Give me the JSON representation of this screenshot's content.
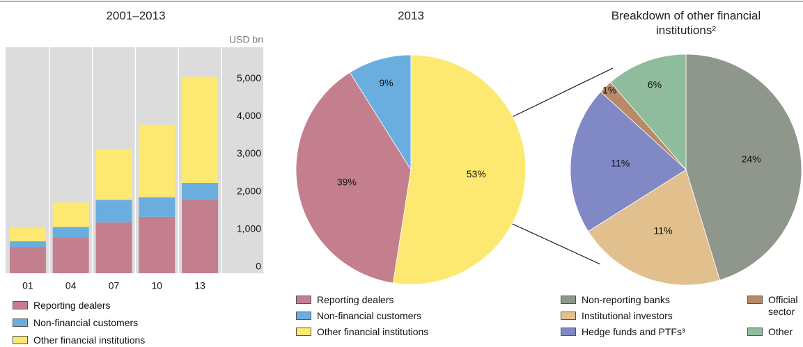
{
  "chart_data": [
    {
      "type": "bar",
      "stacked": true,
      "title": "2001–2013",
      "ylabel": "USD bn",
      "categories": [
        "01",
        "04",
        "07",
        "10",
        "13"
      ],
      "series": [
        {
          "name": "Reporting dealers",
          "color": "#c47f8e",
          "values": [
            700,
            950,
            1350,
            1500,
            1950
          ]
        },
        {
          "name": "Non-financial customers",
          "color": "#6aaee0",
          "values": [
            150,
            280,
            600,
            520,
            450
          ]
        },
        {
          "name": "Other financial institutions",
          "color": "#fde971",
          "values": [
            350,
            650,
            1350,
            1920,
            2820
          ]
        }
      ],
      "ylim": [
        0,
        6000
      ],
      "yticks": [
        0,
        {
          "value": 1000,
          "label": "1,000"
        },
        {
          "value": 2000,
          "label": "2,000"
        },
        {
          "value": 3000,
          "label": "3,000"
        },
        {
          "value": 4000,
          "label": "4,000"
        },
        {
          "value": 5000,
          "label": "5,000"
        }
      ],
      "grid": true
    },
    {
      "type": "pie",
      "title": "2013",
      "categories": [
        "Reporting dealers",
        "Non-financial customers",
        "Other financial institutions"
      ],
      "values": [
        39,
        9,
        53
      ],
      "value_labels": [
        "39%",
        "9%",
        "53%"
      ],
      "colors": [
        "#c47f8e",
        "#6aaee0",
        "#fde971"
      ]
    },
    {
      "type": "pie",
      "title": "Breakdown of other financial institutions²",
      "categories": [
        "Non-reporting banks",
        "Institutional investors",
        "Hedge funds and PTFs³",
        "Official sector",
        "Other"
      ],
      "values": [
        24,
        11,
        11,
        1,
        6
      ],
      "value_labels": [
        "24%",
        "11%",
        "11%",
        "1%",
        "6%"
      ],
      "colors": [
        "#8f968b",
        "#e2c08d",
        "#8088c6",
        "#b88a67",
        "#8fbc9d"
      ]
    }
  ]
}
